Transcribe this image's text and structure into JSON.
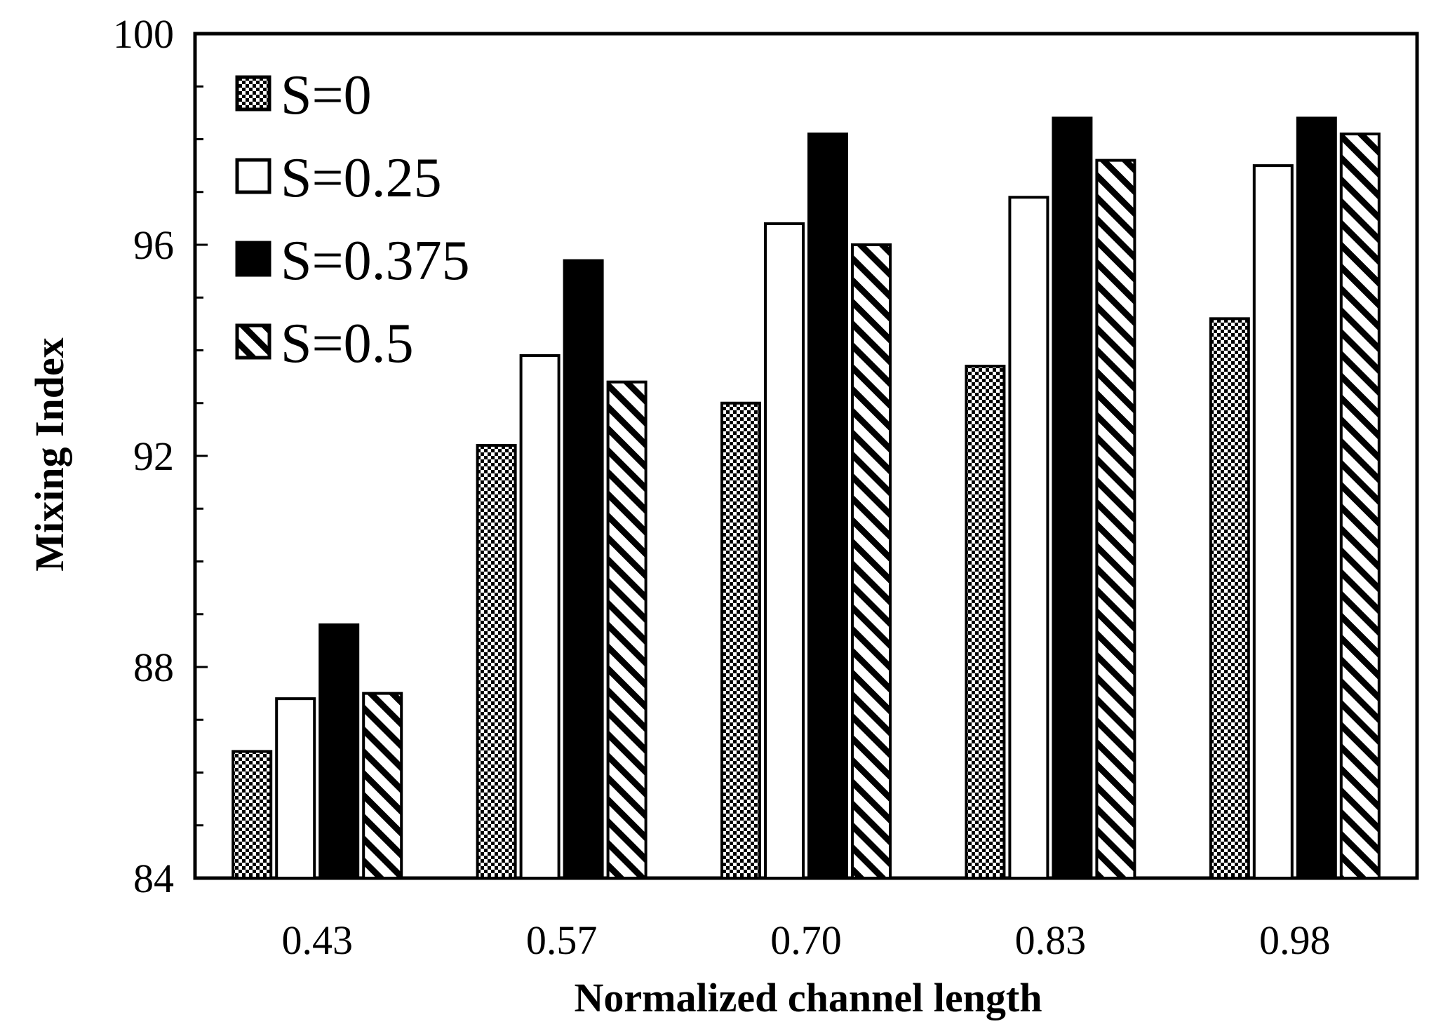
{
  "chart_data": {
    "type": "bar",
    "title": "",
    "xlabel": "Normalized channel length",
    "ylabel": "Mixing Index",
    "categories": [
      "0.43",
      "0.57",
      "0.70",
      "0.83",
      "0.98"
    ],
    "ylim": [
      84,
      100
    ],
    "yticks": [
      "84",
      "88",
      "92",
      "96",
      "100"
    ],
    "grid": false,
    "legend_position": "top-left",
    "series": [
      {
        "name": "S=0",
        "pattern": "checker",
        "values": [
          86.4,
          92.2,
          93.0,
          93.7,
          94.6
        ]
      },
      {
        "name": "S=0.25",
        "pattern": "white",
        "values": [
          87.4,
          93.9,
          96.4,
          96.9,
          97.5
        ]
      },
      {
        "name": "S=0.375",
        "pattern": "black",
        "values": [
          88.8,
          95.7,
          98.1,
          98.4,
          98.4
        ]
      },
      {
        "name": "S=0.5",
        "pattern": "diagonal",
        "values": [
          87.5,
          93.4,
          96.0,
          97.6,
          98.1
        ]
      }
    ],
    "colors": {
      "ink": "#000000",
      "paper": "#ffffff"
    }
  }
}
